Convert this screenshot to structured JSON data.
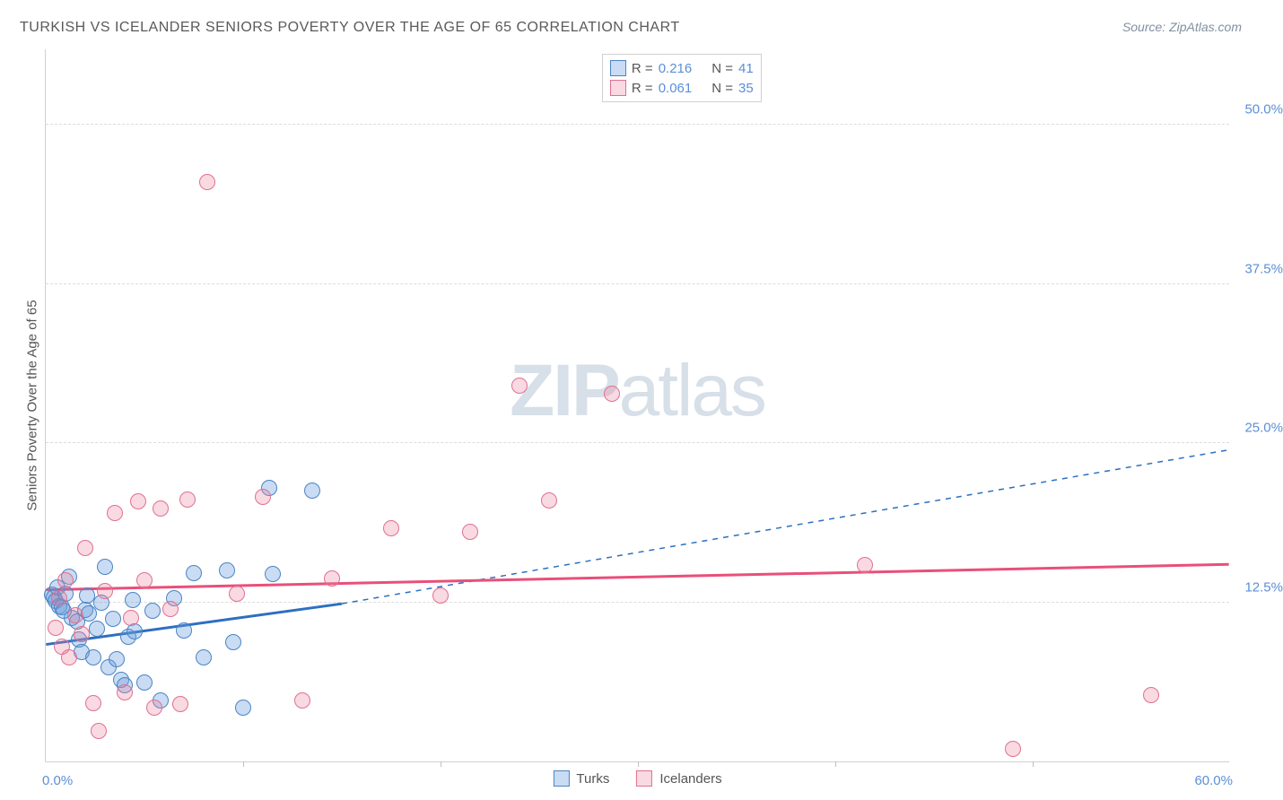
{
  "title": "TURKISH VS ICELANDER SENIORS POVERTY OVER THE AGE OF 65 CORRELATION CHART",
  "source_label": "Source: ZipAtlas.com",
  "watermark_bold": "ZIP",
  "watermark_rest": "atlas",
  "y_axis_label": "Seniors Poverty Over the Age of 65",
  "chart": {
    "type": "scatter",
    "xlim": [
      0,
      60
    ],
    "ylim": [
      0,
      56
    ],
    "x_min_label": "0.0%",
    "x_max_label": "60.0%",
    "x_ticks": [
      10,
      20,
      30,
      40,
      50
    ],
    "y_gridlines": [
      {
        "value": 12.5,
        "label": "12.5%"
      },
      {
        "value": 25.0,
        "label": "25.0%"
      },
      {
        "value": 37.5,
        "label": "37.5%"
      },
      {
        "value": 50.0,
        "label": "50.0%"
      }
    ],
    "background_color": "#ffffff",
    "grid_color": "#dcdcdc",
    "axis_color": "#d0d0d0",
    "tick_label_color": "#5b8fd6",
    "series": [
      {
        "name": "Turks",
        "color_fill": "rgba(100,155,220,0.35)",
        "color_stroke": "#4a84c4",
        "marker_class": "blue",
        "R": "0.216",
        "N": "41",
        "trend": {
          "x1": 0,
          "y1": 9.2,
          "x2_solid": 15,
          "y2_solid": 12.4,
          "x2": 60,
          "y2": 24.5,
          "dash_after_solid": true,
          "stroke": "#2d6fc1",
          "width": 3
        },
        "points": [
          [
            0.3,
            13.1
          ],
          [
            0.4,
            12.9
          ],
          [
            0.5,
            12.6
          ],
          [
            0.6,
            13.7
          ],
          [
            0.7,
            12.2
          ],
          [
            0.8,
            12.1
          ],
          [
            1.0,
            13.2
          ],
          [
            1.2,
            14.5
          ],
          [
            1.3,
            11.3
          ],
          [
            1.6,
            11.0
          ],
          [
            1.7,
            9.6
          ],
          [
            1.8,
            8.6
          ],
          [
            2.0,
            11.9
          ],
          [
            2.2,
            11.6
          ],
          [
            2.4,
            8.2
          ],
          [
            2.6,
            10.4
          ],
          [
            2.8,
            12.5
          ],
          [
            3.0,
            15.3
          ],
          [
            3.2,
            7.4
          ],
          [
            3.4,
            11.2
          ],
          [
            3.6,
            8.0
          ],
          [
            3.8,
            6.4
          ],
          [
            4.0,
            6.0
          ],
          [
            4.2,
            9.8
          ],
          [
            4.4,
            12.7
          ],
          [
            4.5,
            10.2
          ],
          [
            5.0,
            6.2
          ],
          [
            5.4,
            11.8
          ],
          [
            5.8,
            4.8
          ],
          [
            6.5,
            12.8
          ],
          [
            7.0,
            10.3
          ],
          [
            7.5,
            14.8
          ],
          [
            8.0,
            8.2
          ],
          [
            9.2,
            15.0
          ],
          [
            9.5,
            9.4
          ],
          [
            10.0,
            4.2
          ],
          [
            11.3,
            21.5
          ],
          [
            11.5,
            14.7
          ],
          [
            13.5,
            21.3
          ],
          [
            0.9,
            11.8
          ],
          [
            2.1,
            13.0
          ]
        ]
      },
      {
        "name": "Icelanders",
        "color_fill": "rgba(235,130,160,0.30)",
        "color_stroke": "#e07090",
        "marker_class": "pink",
        "R": "0.061",
        "N": "35",
        "trend": {
          "x1": 0,
          "y1": 13.5,
          "x2_solid": 60,
          "y2_solid": 15.5,
          "x2": 60,
          "y2": 15.5,
          "dash_after_solid": false,
          "stroke": "#e94f7a",
          "width": 3
        },
        "points": [
          [
            0.5,
            10.5
          ],
          [
            0.8,
            9.0
          ],
          [
            1.0,
            14.2
          ],
          [
            1.2,
            8.2
          ],
          [
            1.5,
            11.5
          ],
          [
            2.0,
            16.8
          ],
          [
            2.4,
            4.6
          ],
          [
            2.7,
            2.4
          ],
          [
            3.0,
            13.4
          ],
          [
            3.5,
            19.5
          ],
          [
            4.0,
            5.4
          ],
          [
            4.3,
            11.3
          ],
          [
            4.7,
            20.4
          ],
          [
            5.0,
            14.2
          ],
          [
            5.5,
            4.2
          ],
          [
            5.8,
            19.9
          ],
          [
            6.3,
            12.0
          ],
          [
            6.8,
            4.5
          ],
          [
            7.2,
            20.6
          ],
          [
            8.2,
            45.5
          ],
          [
            9.7,
            13.2
          ],
          [
            11.0,
            20.8
          ],
          [
            13.0,
            4.8
          ],
          [
            14.5,
            14.4
          ],
          [
            17.5,
            18.3
          ],
          [
            20.0,
            13.0
          ],
          [
            21.5,
            18.0
          ],
          [
            24.0,
            29.5
          ],
          [
            25.5,
            20.5
          ],
          [
            28.7,
            28.9
          ],
          [
            41.5,
            15.4
          ],
          [
            49.0,
            1.0
          ],
          [
            56.0,
            5.2
          ],
          [
            0.7,
            12.8
          ],
          [
            1.8,
            10.0
          ]
        ]
      }
    ]
  },
  "stats_box": {
    "R_label": "R =",
    "N_label": "N ="
  },
  "legend": {
    "series1": "Turks",
    "series2": "Icelanders"
  }
}
